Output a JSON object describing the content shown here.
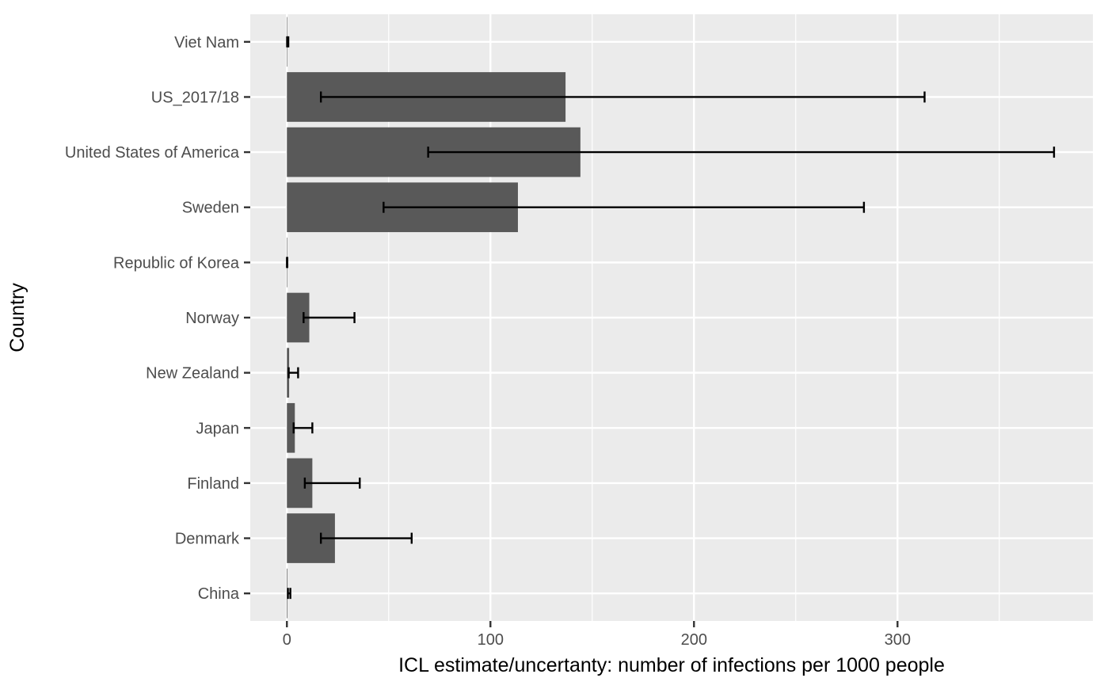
{
  "chart_data": {
    "type": "bar",
    "orientation": "horizontal",
    "xlabel": "ICL estimate/uncertanty: number of infections per 1000 people",
    "ylabel": "Country",
    "xlim": [
      -18,
      396
    ],
    "x_ticks": [
      0,
      100,
      200,
      300
    ],
    "x_tick_labels": [
      "0",
      "100",
      "200",
      "300"
    ],
    "grid": true,
    "categories": [
      "China",
      "Denmark",
      "Finland",
      "Japan",
      "New Zealand",
      "Norway",
      "Republic of Korea",
      "Sweden",
      "United States of America",
      "US_2017/18",
      "Viet Nam"
    ],
    "values": [
      0.3,
      23.6,
      12.5,
      3.9,
      1.1,
      11.0,
      0.05,
      113.5,
      144.2,
      136.9,
      0.2
    ],
    "error_low": [
      0.5,
      16.7,
      8.8,
      3.3,
      0.9,
      8.2,
      0.02,
      47.5,
      69.4,
      16.7,
      0.1
    ],
    "error_high": [
      1.7,
      61.3,
      35.8,
      12.5,
      5.5,
      33.2,
      0.2,
      283.5,
      376.9,
      313.3,
      0.7
    ],
    "colors": {
      "bar": "#595959",
      "panel": "#ebebeb",
      "grid": "#ffffff",
      "error_bar": "#000000",
      "text": "#4d4d4d"
    }
  }
}
